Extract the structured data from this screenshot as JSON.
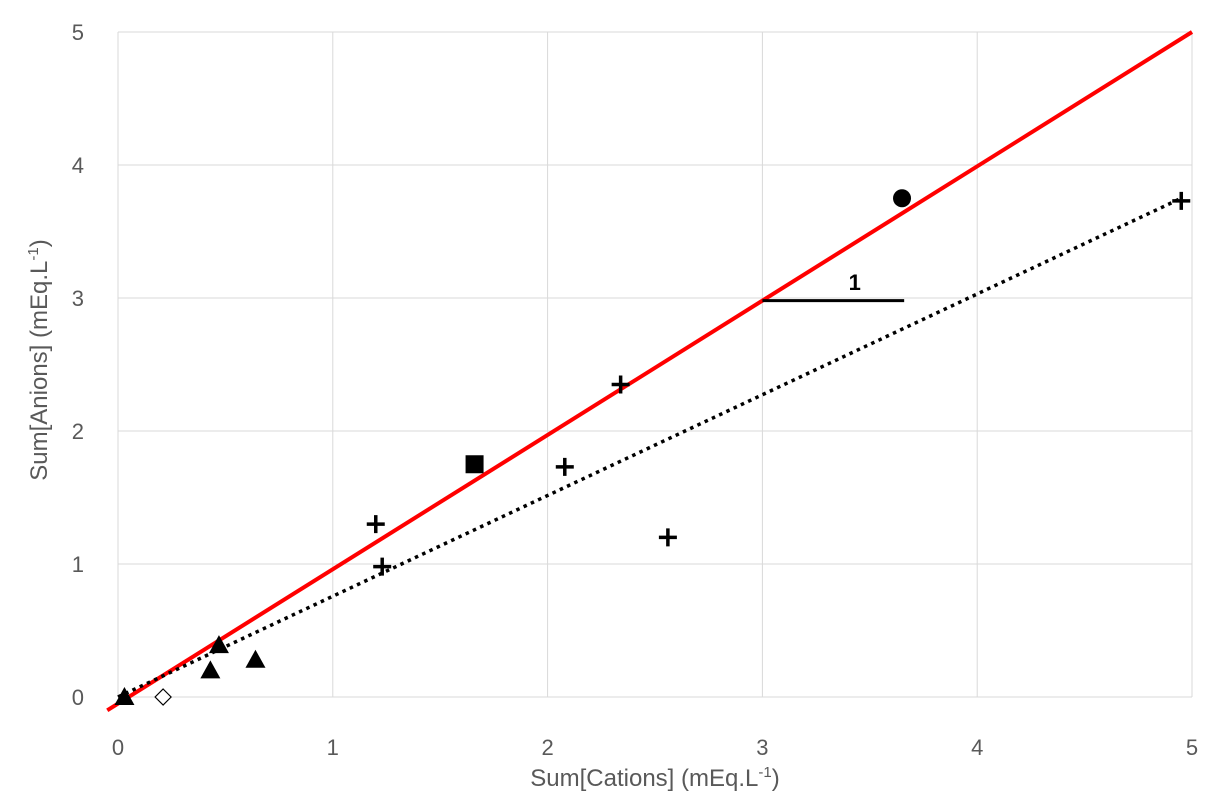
{
  "chart_data": {
    "type": "scatter",
    "title": "",
    "xlabel_main": "Sum[Cations]  (mEq.L",
    "xlabel_sup": "-1",
    "xlabel_end": ")",
    "ylabel_main": "Sum[Anions]  (mEq.L",
    "ylabel_sup": "-1",
    "ylabel_end": ")",
    "xlim": [
      0,
      5
    ],
    "ylim": [
      0,
      5
    ],
    "xticks": [
      "0",
      "1",
      "2",
      "3",
      "4",
      "5"
    ],
    "yticks": [
      "0",
      "1",
      "2",
      "3",
      "4",
      "5"
    ],
    "grid": true,
    "series": [
      {
        "marker": "triangle",
        "points": [
          [
            0.03,
            0.0
          ],
          [
            0.43,
            0.2
          ],
          [
            0.47,
            0.39
          ],
          [
            0.64,
            0.28
          ]
        ]
      },
      {
        "marker": "diamond-open",
        "points": [
          [
            0.21,
            0.0
          ]
        ]
      },
      {
        "marker": "cross",
        "points": [
          [
            1.2,
            1.3
          ],
          [
            1.23,
            0.98
          ],
          [
            2.08,
            1.73
          ],
          [
            2.34,
            2.35
          ],
          [
            2.56,
            1.2
          ],
          [
            4.95,
            3.73
          ]
        ]
      },
      {
        "marker": "square",
        "points": [
          [
            1.66,
            1.75
          ]
        ]
      },
      {
        "marker": "circle",
        "points": [
          [
            3.65,
            3.75
          ]
        ]
      }
    ],
    "lines": [
      {
        "style": "solid",
        "color": "#ff0000",
        "from": [
          -0.05,
          -0.1
        ],
        "to": [
          5.0,
          5.0
        ]
      },
      {
        "style": "dotted",
        "color": "#000000",
        "from": [
          0.0,
          0.0
        ],
        "to": [
          4.95,
          3.75
        ]
      }
    ],
    "annotation": {
      "label": "1",
      "segment_from": [
        3.0,
        2.98
      ],
      "segment_to": [
        3.66,
        2.98
      ],
      "label_at": [
        3.43,
        3.12
      ]
    }
  }
}
